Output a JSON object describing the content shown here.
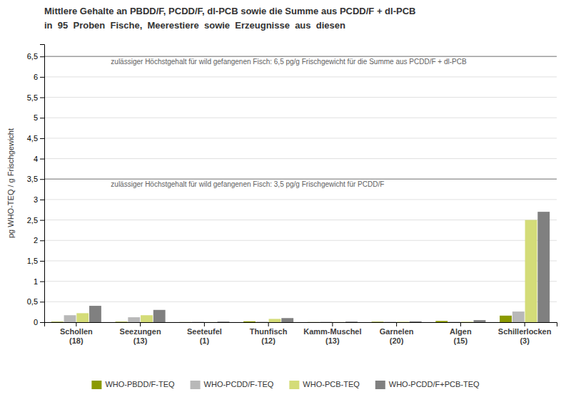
{
  "chart_data": {
    "type": "bar",
    "title": "Mittlere Gehalte an PBDD/F, PCDD/F, dl-PCB sowie die Summe aus PCDD/F + dl-PCB",
    "subtitle": "in  95  Proben  Fische,  Meerestiere  sowie  Erzeugnisse  aus  diesen",
    "y_label": "pg WHO-TEQ / g Frischgewicht",
    "categories": [
      "Schollen\n(18)",
      "Seezungen\n(13)",
      "Seeteufel\n(1)",
      "Thunfisch\n(12)",
      "Kamm-Muschel\n(13)",
      "Garnelen\n(20)",
      "Algen\n(15)",
      "Schillerlocken\n(3)"
    ],
    "series": [
      {
        "name": "WHO-PBDD/F-TEQ",
        "color": "#8b9a00",
        "values": [
          0.01,
          0.01,
          0.002,
          0.02,
          0.002,
          0.01,
          0.03,
          0.16
        ]
      },
      {
        "name": "WHO-PCDD/F-TEQ",
        "color": "#b8b8b8",
        "values": [
          0.17,
          0.12,
          0.01,
          0.01,
          0.01,
          0.01,
          0.01,
          0.26
        ]
      },
      {
        "name": "WHO-PCB-TEQ",
        "color": "#d4dc78",
        "values": [
          0.22,
          0.17,
          0.002,
          0.08,
          0.002,
          0.01,
          0.01,
          2.5
        ]
      },
      {
        "name": "WHO-PCDD/F+PCB-TEQ",
        "color": "#808080",
        "values": [
          0.4,
          0.3,
          0.014,
          0.1,
          0.014,
          0.02,
          0.05,
          2.7
        ]
      }
    ],
    "annotations": [
      {
        "y": 6.5,
        "label": "zulässiger Höchstgehalt für wild gefangenen Fisch: 6,5 pg/g Frischgewicht für die Summe aus PCDD/F + dl-PCB"
      },
      {
        "y": 3.5,
        "label": "zulässiger Höchstgehalt für wild gefangenen Fisch: 3,5 pg/g Frischgewicht für PCDD/F"
      }
    ],
    "ylim": [
      0,
      6.8
    ],
    "yticks": [
      0,
      {
        "value": 0.5,
        "label": "0,5"
      },
      1,
      {
        "value": 1.5,
        "label": "1,5"
      },
      2,
      {
        "value": 2.5,
        "label": "2,5"
      },
      3,
      {
        "value": 3.5,
        "label": "3,5"
      },
      4,
      {
        "value": 4.5,
        "label": "4,5"
      },
      5,
      {
        "value": 5.5,
        "label": "5,5"
      },
      6,
      {
        "value": 6.5,
        "label": "6,5"
      }
    ],
    "grid": true,
    "legend": "bottom"
  }
}
